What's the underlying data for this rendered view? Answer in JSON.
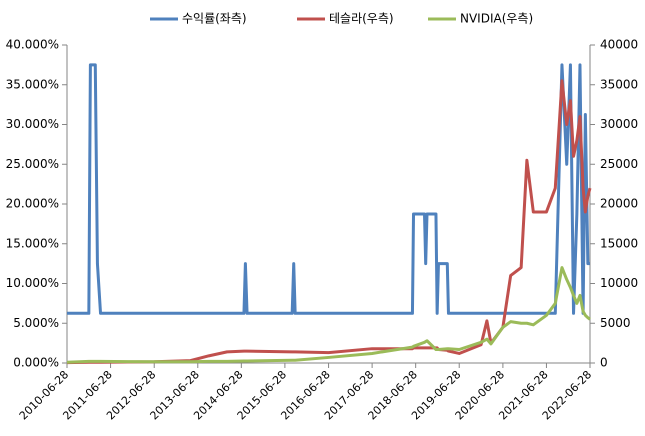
{
  "chart_data": {
    "type": "line",
    "x": [
      "2010-06-28",
      "2010-12-28",
      "2011-01-10",
      "2011-02-20",
      "2011-03-10",
      "2011-04-05",
      "2012-06-28",
      "2013-04-28",
      "2013-09-28",
      "2014-02-28",
      "2014-07-20",
      "2014-08-01",
      "2014-08-15",
      "2015-08-28",
      "2015-09-10",
      "2015-09-22",
      "2016-06-28",
      "2017-06-28",
      "2018-06-01",
      "2018-06-10",
      "2018-09-10",
      "2018-09-20",
      "2018-10-01",
      "2018-12-15",
      "2018-12-25",
      "2019-01-05",
      "2019-03-20",
      "2019-03-30",
      "2019-06-28",
      "2019-12-28",
      "2020-02-15",
      "2020-03-20",
      "2020-06-28",
      "2020-09-01",
      "2020-11-28",
      "2021-01-15",
      "2021-03-10",
      "2021-06-28",
      "2021-09-10",
      "2021-11-05",
      "2021-12-15",
      "2022-01-15",
      "2022-02-10",
      "2022-03-10",
      "2022-04-05",
      "2022-05-01",
      "2022-05-20",
      "2022-06-10",
      "2022-06-28"
    ],
    "series": [
      {
        "name": "수익률(좌측)",
        "color": "#4f81bd",
        "axis": "y",
        "values": [
          6.25,
          6.25,
          37.5,
          37.5,
          12.5,
          6.25,
          6.25,
          6.25,
          6.25,
          6.25,
          6.25,
          12.5,
          6.25,
          6.25,
          12.5,
          6.25,
          6.25,
          6.25,
          6.25,
          18.75,
          18.75,
          12.5,
          18.75,
          18.75,
          6.25,
          12.5,
          12.5,
          6.25,
          6.25,
          6.25,
          6.25,
          6.25,
          6.25,
          6.25,
          6.25,
          6.25,
          6.25,
          6.25,
          6.25,
          37.5,
          25,
          37.5,
          6.25,
          18.75,
          37.5,
          6.25,
          31.25,
          12.5,
          12.5
        ]
      },
      {
        "name": "테슬라(우측)",
        "color": "#c0504d",
        "axis": "y2",
        "values": [
          50,
          100,
          100,
          100,
          100,
          100,
          150,
          300,
          900,
          1400,
          1500,
          1500,
          1500,
          1400,
          1400,
          1400,
          1300,
          1800,
          1800,
          1900,
          1900,
          1900,
          1900,
          1900,
          1900,
          1700,
          1600,
          1500,
          1200,
          2300,
          5300,
          2500,
          4500,
          11000,
          12000,
          25500,
          19000,
          19000,
          22000,
          35500,
          30000,
          33000,
          26000,
          28000,
          31000,
          22000,
          19000,
          21000,
          22000
        ]
      },
      {
        "name": "NVIDIA(우측)",
        "color": "#9bbb59",
        "axis": "y2",
        "values": [
          100,
          200,
          200,
          200,
          200,
          200,
          150,
          150,
          200,
          200,
          250,
          250,
          250,
          350,
          350,
          350,
          700,
          1200,
          2000,
          2100,
          2600,
          2700,
          2800,
          1700,
          1700,
          1700,
          1800,
          1800,
          1700,
          2600,
          3000,
          2400,
          4500,
          5200,
          5000,
          5000,
          4800,
          6000,
          7500,
          12000,
          10500,
          9500,
          8500,
          7500,
          8500,
          6500,
          6000,
          5700,
          5500
        ]
      }
    ],
    "xlim": [
      "2010-06-28",
      "2022-06-28"
    ],
    "xticks": [
      "2010-06-28",
      "2011-06-28",
      "2012-06-28",
      "2013-06-28",
      "2014-06-28",
      "2015-06-28",
      "2016-06-28",
      "2017-06-28",
      "2018-06-28",
      "2019-06-28",
      "2020-06-28",
      "2021-06-28",
      "2022-06-28"
    ],
    "ylim": [
      0,
      40
    ],
    "yticks": [
      {
        "value": 0,
        "label": "0.000%"
      },
      {
        "value": 5,
        "label": "5.000%"
      },
      {
        "value": 10,
        "label": "10.000%"
      },
      {
        "value": 15,
        "label": "15.000%"
      },
      {
        "value": 20,
        "label": "20.000%"
      },
      {
        "value": 25,
        "label": "25.000%"
      },
      {
        "value": 30,
        "label": "30.000%"
      },
      {
        "value": 35,
        "label": "35.000%"
      },
      {
        "value": 40,
        "label": "40.000%"
      }
    ],
    "y2lim": [
      0,
      40000
    ],
    "y2ticks": [
      0,
      5000,
      10000,
      15000,
      20000,
      25000,
      30000,
      35000,
      40000
    ],
    "grid": false,
    "legend": "top"
  }
}
